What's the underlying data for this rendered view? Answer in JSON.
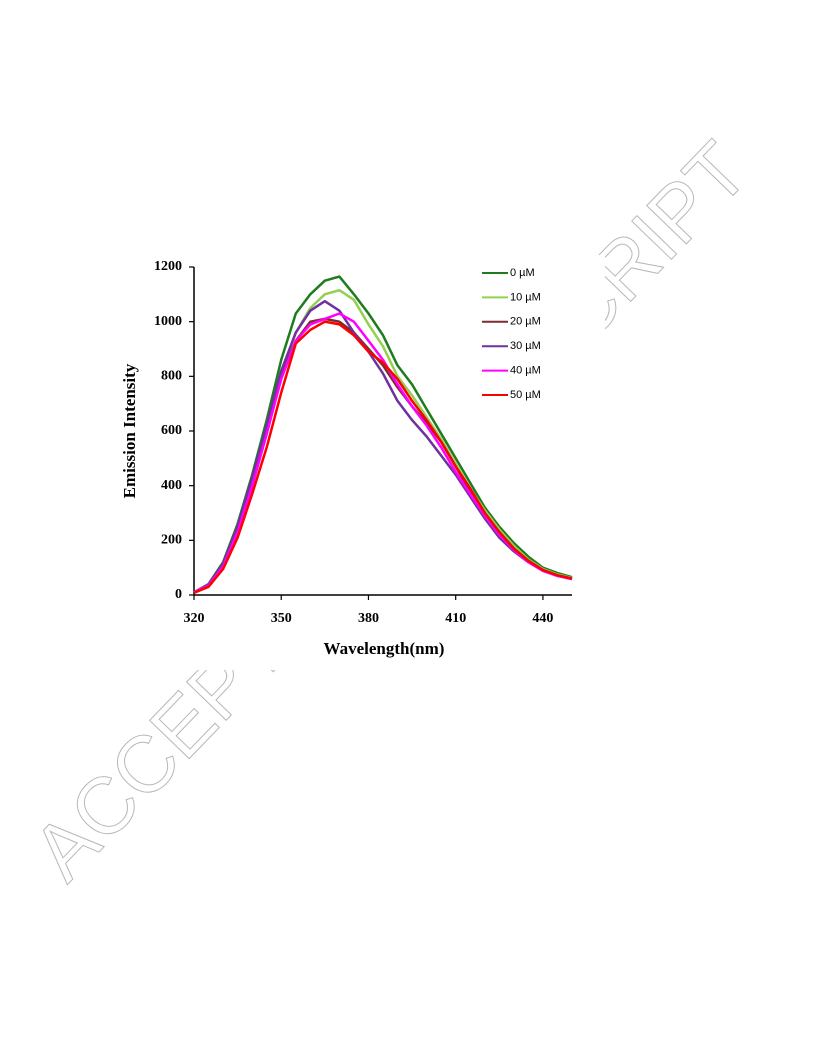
{
  "watermark": "ACCEPTED MANUSCRIPT",
  "chart_data": {
    "type": "line",
    "x_label": "Wavelength(nm)",
    "y_label": "Emission Intensity",
    "x": [
      320,
      325,
      330,
      335,
      340,
      345,
      350,
      355,
      360,
      365,
      370,
      375,
      380,
      385,
      390,
      395,
      400,
      405,
      410,
      415,
      420,
      425,
      430,
      435,
      440,
      445,
      450
    ],
    "xlim": [
      320,
      450
    ],
    "xticks": [
      320,
      350,
      380,
      410,
      440
    ],
    "ylim": [
      0,
      1200
    ],
    "yticks": [
      0,
      200,
      400,
      600,
      800,
      1000,
      1200
    ],
    "series": [
      {
        "name": "0 µM",
        "color": "#1e7b1e",
        "values": [
          10,
          40,
          120,
          260,
          440,
          640,
          860,
          1030,
          1100,
          1150,
          1165,
          1100,
          1030,
          950,
          840,
          770,
          680,
          590,
          500,
          410,
          320,
          250,
          190,
          140,
          100,
          80,
          65
        ]
      },
      {
        "name": "10 µM",
        "color": "#92d050",
        "values": [
          10,
          35,
          110,
          240,
          410,
          600,
          810,
          960,
          1050,
          1100,
          1115,
          1080,
          990,
          910,
          800,
          730,
          650,
          570,
          480,
          390,
          310,
          240,
          180,
          130,
          95,
          75,
          62
        ]
      },
      {
        "name": "20 µM",
        "color": "#7b2c2c",
        "values": [
          10,
          35,
          105,
          230,
          400,
          590,
          800,
          930,
          1000,
          1010,
          1000,
          960,
          900,
          840,
          760,
          690,
          630,
          560,
          470,
          380,
          300,
          230,
          170,
          125,
          90,
          72,
          60
        ]
      },
      {
        "name": "30 µM",
        "color": "#7030a0",
        "values": [
          10,
          38,
          115,
          250,
          430,
          620,
          820,
          960,
          1040,
          1075,
          1040,
          960,
          890,
          810,
          710,
          640,
          580,
          510,
          440,
          360,
          280,
          210,
          160,
          120,
          90,
          70,
          60
        ]
      },
      {
        "name": "40 µM",
        "color": "#ff00ff",
        "values": [
          10,
          35,
          105,
          230,
          400,
          590,
          790,
          930,
          990,
          1010,
          1030,
          1000,
          930,
          860,
          770,
          690,
          620,
          540,
          450,
          370,
          290,
          220,
          165,
          120,
          88,
          70,
          58
        ]
      },
      {
        "name": "50 µM",
        "color": "#ff0000",
        "values": [
          8,
          30,
          95,
          210,
          370,
          540,
          740,
          920,
          970,
          1000,
          990,
          950,
          890,
          850,
          790,
          710,
          640,
          560,
          470,
          390,
          300,
          230,
          170,
          125,
          92,
          72,
          60
        ]
      }
    ]
  }
}
